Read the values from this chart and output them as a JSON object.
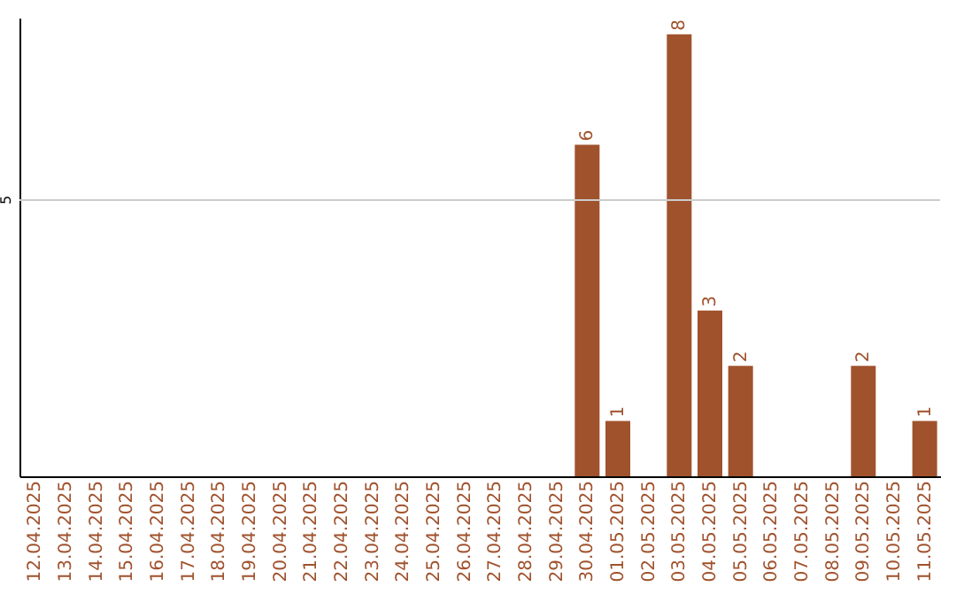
{
  "chart_data": {
    "type": "bar",
    "categories": [
      "12.04.2025",
      "13.04.2025",
      "14.04.2025",
      "15.04.2025",
      "16.04.2025",
      "17.04.2025",
      "18.04.2025",
      "19.04.2025",
      "20.04.2025",
      "21.04.2025",
      "22.04.2025",
      "23.04.2025",
      "24.04.2025",
      "25.04.2025",
      "26.04.2025",
      "27.04.2025",
      "28.04.2025",
      "29.04.2025",
      "30.04.2025",
      "01.05.2025",
      "02.05.2025",
      "03.05.2025",
      "04.05.2025",
      "05.05.2025",
      "06.05.2025",
      "07.05.2025",
      "08.05.2025",
      "09.05.2025",
      "10.05.2025",
      "11.05.2025"
    ],
    "values": [
      null,
      null,
      null,
      null,
      null,
      null,
      null,
      null,
      null,
      null,
      null,
      null,
      null,
      null,
      null,
      null,
      null,
      null,
      6,
      1,
      null,
      8,
      3,
      2,
      null,
      null,
      null,
      2,
      null,
      1
    ],
    "color": "#a0522d",
    "ylim": [
      0,
      8.3
    ],
    "data_labels": true,
    "ref_lines": [
      {
        "axis": "y",
        "value": 5,
        "label": "5",
        "color": "#cccccc"
      }
    ]
  }
}
